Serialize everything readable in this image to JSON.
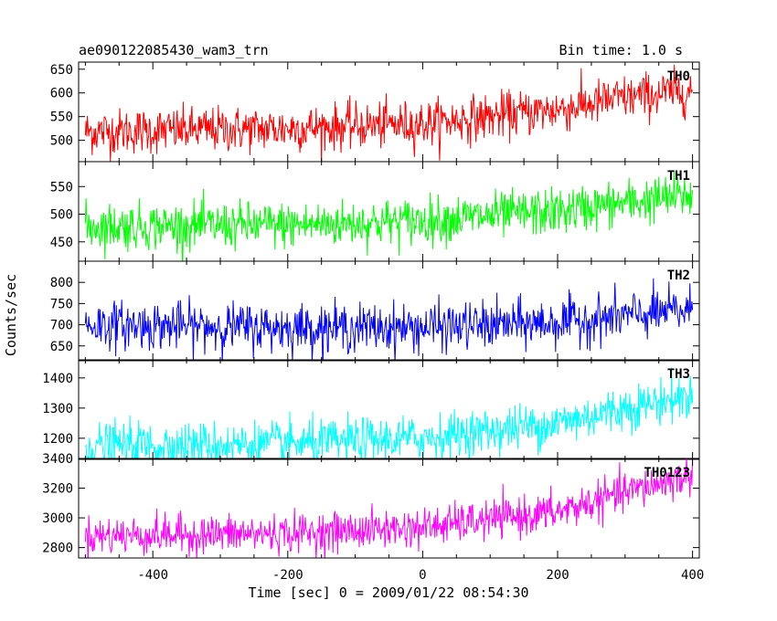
{
  "header": {
    "obs_id": "ae090122085430_wam3_trn",
    "bin_time": "Bin time: 1.0 s"
  },
  "chart_data": {
    "type": "line",
    "xlabel": "Time [sec] 0 = 2009/01/22 08:54:30",
    "ylabel": "Counts/sec",
    "xlim": [
      -510,
      410
    ],
    "xticks": [
      -400,
      -200,
      0,
      200,
      400
    ],
    "grid": false,
    "panels": [
      {
        "name": "TH0",
        "color": "#ff0000",
        "ylim": [
          455,
          665
        ],
        "yticks": [
          500,
          550,
          600,
          650
        ],
        "trend": {
          "x": [
            -500,
            -200,
            0,
            200,
            300,
            400
          ],
          "y": [
            518,
            525,
            535,
            565,
            590,
            605
          ]
        },
        "noise_sd": 24
      },
      {
        "name": "TH1",
        "color": "#00ff00",
        "ylim": [
          415,
          595
        ],
        "yticks": [
          450,
          500,
          550
        ],
        "trend": {
          "x": [
            -500,
            -200,
            0,
            200,
            300,
            400
          ],
          "y": [
            478,
            480,
            488,
            505,
            520,
            535
          ]
        },
        "noise_sd": 21
      },
      {
        "name": "TH2",
        "color": "#0000ff",
        "ylim": [
          615,
          850
        ],
        "yticks": [
          650,
          700,
          750,
          800
        ],
        "trend": {
          "x": [
            -500,
            -200,
            0,
            200,
            300,
            400
          ],
          "y": [
            700,
            693,
            693,
            705,
            720,
            735
          ]
        },
        "noise_sd": 28
      },
      {
        "name": "TH3",
        "color": "#00ffff",
        "ylim": [
          1130,
          1460
        ],
        "yticks": [
          1200,
          1300,
          1400
        ],
        "trend": {
          "x": [
            -500,
            -200,
            0,
            200,
            300,
            400
          ],
          "y": [
            1175,
            1180,
            1200,
            1250,
            1300,
            1340
          ]
        },
        "noise_sd": 38
      },
      {
        "name": "TH0123",
        "color": "#ff00ff",
        "ylim": [
          2730,
          3400
        ],
        "yticks": [
          2800,
          3000,
          3200,
          3400
        ],
        "trend": {
          "x": [
            -500,
            -200,
            0,
            200,
            300,
            400
          ],
          "y": [
            2880,
            2895,
            2935,
            3040,
            3170,
            3290
          ]
        },
        "noise_sd": 65
      }
    ]
  }
}
